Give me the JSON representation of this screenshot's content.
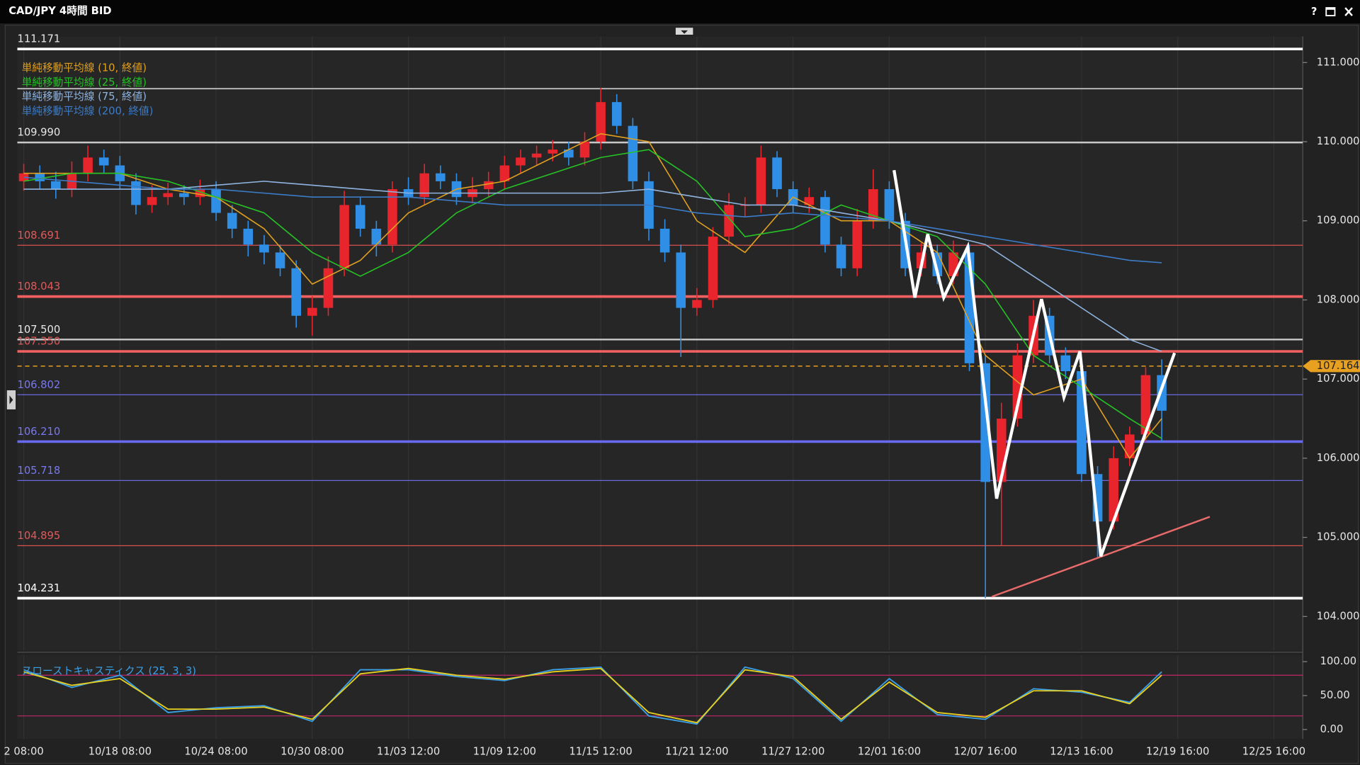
{
  "window": {
    "help_button": "?"
  },
  "chart_data": {
    "type": "candlestick",
    "title": "CAD/JPY 4時間 BID",
    "xlim": [
      -0.4,
      79.8
    ],
    "xticks": [
      {
        "value": 0,
        "label": "2 08:00"
      },
      {
        "value": 6,
        "label": "10/18 08:00"
      },
      {
        "value": 12,
        "label": "10/24 08:00"
      },
      {
        "value": 18,
        "label": "10/30 08:00"
      },
      {
        "value": 24,
        "label": "11/03 12:00"
      },
      {
        "value": 30,
        "label": "11/09 12:00"
      },
      {
        "value": 36,
        "label": "11/15 12:00"
      },
      {
        "value": 42,
        "label": "11/21 12:00"
      },
      {
        "value": 48,
        "label": "11/27 12:00"
      },
      {
        "value": 54,
        "label": "12/01 16:00"
      },
      {
        "value": 60,
        "label": "12/07 16:00"
      },
      {
        "value": 66,
        "label": "12/13 16:00"
      },
      {
        "value": 72,
        "label": "12/19 16:00"
      },
      {
        "value": 78,
        "label": "12/25 16:00"
      }
    ],
    "ylim": [
      103.57,
      111.33
    ],
    "yticks": [
      {
        "value": 104,
        "label": "104.000"
      },
      {
        "value": 105,
        "label": "105.000"
      },
      {
        "value": 106,
        "label": "106.000"
      },
      {
        "value": 107,
        "label": "107.000"
      },
      {
        "value": 108,
        "label": "108.000"
      },
      {
        "value": 109,
        "label": "109.000"
      },
      {
        "value": 110,
        "label": "110.000"
      },
      {
        "value": 111,
        "label": "111.000"
      }
    ],
    "up_color": "#e8242c",
    "down_color": "#2f8fe6",
    "open": [
      109.5,
      109.6,
      109.5,
      109.4,
      109.6,
      109.8,
      109.7,
      109.5,
      109.2,
      109.3,
      109.35,
      109.3,
      109.4,
      109.1,
      108.9,
      108.7,
      108.6,
      108.4,
      107.8,
      107.9,
      108.4,
      109.2,
      108.9,
      108.7,
      109.4,
      109.3,
      109.6,
      109.5,
      109.3,
      109.4,
      109.5,
      109.7,
      109.8,
      109.85,
      109.9,
      109.8,
      110.0,
      110.5,
      110.2,
      109.5,
      108.9,
      108.6,
      107.9,
      108.0,
      108.8,
      109.2,
      109.2,
      109.8,
      109.4,
      109.2,
      109.3,
      108.7,
      108.4,
      109.0,
      109.4,
      109.0,
      108.4,
      108.6,
      108.3,
      108.6,
      107.2,
      105.7,
      106.5,
      107.3,
      107.8,
      107.3,
      107.1,
      105.8,
      105.2,
      106.0,
      106.3,
      107.05
    ],
    "high": [
      109.72,
      109.7,
      109.62,
      109.75,
      109.95,
      109.9,
      109.82,
      109.6,
      109.45,
      109.48,
      109.45,
      109.52,
      109.5,
      109.2,
      109.0,
      108.82,
      108.7,
      108.5,
      108.05,
      108.55,
      109.38,
      109.3,
      109.0,
      109.5,
      109.55,
      109.72,
      109.7,
      109.6,
      109.55,
      109.62,
      109.82,
      109.9,
      109.95,
      110.02,
      110.0,
      110.12,
      110.68,
      110.6,
      110.3,
      109.62,
      109.02,
      108.7,
      108.15,
      108.92,
      109.35,
      109.3,
      109.95,
      109.88,
      109.5,
      109.42,
      109.38,
      108.8,
      109.15,
      109.65,
      109.5,
      109.1,
      108.72,
      108.7,
      108.75,
      108.7,
      107.3,
      106.7,
      107.45,
      108.0,
      107.9,
      107.4,
      107.2,
      105.9,
      106.15,
      106.4,
      107.15,
      107.25
    ],
    "low": [
      109.38,
      109.4,
      109.28,
      109.3,
      109.5,
      109.6,
      109.4,
      109.08,
      109.1,
      109.2,
      109.2,
      109.2,
      109.0,
      108.78,
      108.55,
      108.45,
      108.3,
      107.65,
      107.55,
      107.8,
      108.3,
      108.8,
      108.55,
      108.6,
      109.2,
      109.2,
      109.4,
      109.2,
      109.22,
      109.3,
      109.4,
      109.6,
      109.7,
      109.75,
      109.7,
      109.7,
      109.9,
      110.1,
      109.4,
      108.75,
      108.48,
      107.28,
      107.8,
      107.9,
      108.7,
      109.05,
      109.1,
      109.3,
      109.1,
      109.1,
      108.6,
      108.3,
      108.3,
      108.9,
      108.9,
      108.3,
      108.3,
      108.2,
      108.2,
      107.1,
      104.23,
      104.9,
      106.4,
      107.2,
      107.2,
      107.0,
      105.7,
      104.75,
      105.1,
      105.9,
      106.2,
      106.2
    ],
    "close": [
      109.6,
      109.5,
      109.4,
      109.6,
      109.8,
      109.7,
      109.5,
      109.2,
      109.3,
      109.35,
      109.3,
      109.4,
      109.1,
      108.9,
      108.7,
      108.6,
      108.4,
      107.8,
      107.9,
      108.4,
      109.2,
      108.9,
      108.7,
      109.4,
      109.3,
      109.6,
      109.5,
      109.3,
      109.4,
      109.5,
      109.7,
      109.8,
      109.85,
      109.9,
      109.8,
      110.0,
      110.5,
      110.2,
      109.5,
      108.9,
      108.6,
      107.9,
      108.0,
      108.8,
      109.2,
      109.2,
      109.8,
      109.4,
      109.2,
      109.3,
      108.7,
      108.4,
      109.0,
      109.4,
      109.0,
      108.4,
      108.6,
      108.3,
      108.6,
      107.2,
      105.7,
      106.5,
      107.3,
      107.8,
      107.3,
      107.1,
      105.8,
      105.2,
      106.0,
      106.3,
      107.05,
      106.6
    ],
    "moving_averages": {
      "x": [
        0,
        3,
        6,
        9,
        12,
        15,
        18,
        21,
        24,
        27,
        30,
        33,
        36,
        39,
        42,
        45,
        48,
        51,
        54,
        57,
        60,
        63,
        66,
        69,
        71
      ],
      "series": [
        {
          "name": "単純移動平均線 (10, 終値)",
          "color": "#e0a020",
          "values": [
            109.6,
            109.6,
            109.6,
            109.4,
            109.3,
            108.9,
            108.2,
            108.5,
            109.1,
            109.4,
            109.5,
            109.8,
            110.1,
            110.0,
            109.0,
            108.6,
            109.3,
            109.0,
            109.0,
            108.6,
            107.3,
            106.8,
            107.0,
            106.0,
            106.5
          ]
        },
        {
          "name": "単純移動平均線 (25, 終値)",
          "color": "#26c226",
          "values": [
            109.5,
            109.6,
            109.6,
            109.5,
            109.3,
            109.1,
            108.6,
            108.3,
            108.6,
            109.1,
            109.4,
            109.6,
            109.8,
            109.9,
            109.5,
            108.8,
            108.9,
            109.2,
            109.0,
            108.8,
            108.2,
            107.3,
            106.9,
            106.5,
            106.25
          ]
        },
        {
          "name": "単純移動平均線 (75, 終値)",
          "color": "#8fb4e0",
          "values": [
            109.4,
            109.4,
            109.4,
            109.4,
            109.45,
            109.5,
            109.45,
            109.4,
            109.35,
            109.35,
            109.35,
            109.35,
            109.35,
            109.4,
            109.3,
            109.2,
            109.2,
            109.1,
            109.0,
            108.85,
            108.7,
            108.3,
            107.9,
            107.5,
            107.35
          ]
        },
        {
          "name": "単純移動平均線 (200, 終値)",
          "color": "#3c7cc8",
          "values": [
            109.55,
            109.5,
            109.45,
            109.4,
            109.4,
            109.35,
            109.3,
            109.3,
            109.3,
            109.25,
            109.2,
            109.2,
            109.2,
            109.2,
            109.1,
            109.05,
            109.1,
            109.05,
            109.0,
            108.9,
            108.8,
            108.7,
            108.6,
            108.5,
            108.47
          ]
        }
      ]
    },
    "levels": [
      {
        "value": 111.171,
        "label": "111.171",
        "color": "#ffffff",
        "width": 3,
        "label_color": "#e8e8e8"
      },
      {
        "value": 110.67,
        "color": "#bdbdbd",
        "width": 1.5
      },
      {
        "value": 109.99,
        "label": "109.990",
        "color": "#c8c8c8",
        "width": 2,
        "label_color": "#e8e8e8"
      },
      {
        "value": 108.691,
        "label": "108.691",
        "color": "#d85050",
        "width": 1,
        "label_color": "#e05a5a"
      },
      {
        "value": 108.043,
        "label": "108.043",
        "color": "#f06060",
        "width": 3,
        "label_color": "#e05a5a"
      },
      {
        "value": 107.5,
        "label": "107.500",
        "color": "#c8c8c8",
        "width": 2,
        "label_color": "#e8e8e8"
      },
      {
        "value": 107.35,
        "label": "107.350",
        "color": "#f06060",
        "width": 3,
        "label_color": "#e05a5a"
      },
      {
        "value": 106.802,
        "label": "106.802",
        "color": "#6a6ae0",
        "width": 1,
        "label_color": "#7878f0"
      },
      {
        "value": 106.21,
        "label": "106.210",
        "color": "#6a6af0",
        "width": 3,
        "label_color": "#7878f0"
      },
      {
        "value": 105.718,
        "label": "105.718",
        "color": "#6a6ae0",
        "width": 1,
        "label_color": "#7878f0"
      },
      {
        "value": 104.895,
        "label": "104.895",
        "color": "#d85050",
        "width": 1,
        "label_color": "#e05a5a"
      },
      {
        "value": 104.231,
        "label": "104.231",
        "color": "#ffffff",
        "width": 3,
        "label_color": "#ffffff"
      }
    ],
    "current_price": 107.164,
    "current_price_color": "#e8a020",
    "pattern_line": {
      "color": "#ffffff",
      "x": [
        54.3,
        55.6,
        56.4,
        57.4,
        58.9,
        60.7,
        63.5,
        64.9,
        65.9,
        67.2,
        71.8
      ],
      "y": [
        109.64,
        108.03,
        108.83,
        108.03,
        108.67,
        105.49,
        108.01,
        106.77,
        107.35,
        104.76,
        107.33
      ]
    },
    "trend_line": {
      "color": "#e86a6a",
      "x": [
        60.4,
        74.0
      ],
      "y": [
        104.25,
        105.26
      ]
    },
    "stochastic": {
      "name": "スローストキャスティクス (25, 3, 3)",
      "name_color": "#3aa0e8",
      "ylim": [
        -14,
        110
      ],
      "yticks": [
        {
          "value": 0,
          "label": "0.00"
        },
        {
          "value": 50,
          "label": "50.00"
        },
        {
          "value": 100,
          "label": "100.00"
        }
      ],
      "levels": [
        20,
        80
      ],
      "level_color": "#c02866",
      "x": [
        0,
        3,
        6,
        9,
        12,
        15,
        18,
        21,
        24,
        27,
        30,
        33,
        36,
        39,
        42,
        45,
        48,
        51,
        54,
        57,
        60,
        63,
        66,
        69,
        71
      ],
      "lines": [
        {
          "color": "#3aa0e8",
          "values": [
            88,
            62,
            80,
            25,
            32,
            35,
            12,
            88,
            88,
            78,
            72,
            88,
            92,
            20,
            8,
            92,
            75,
            12,
            75,
            22,
            15,
            60,
            55,
            40,
            85
          ]
        },
        {
          "color": "#e8d020",
          "values": [
            85,
            65,
            75,
            30,
            30,
            33,
            15,
            82,
            90,
            80,
            74,
            85,
            90,
            25,
            10,
            88,
            78,
            15,
            70,
            25,
            18,
            57,
            57,
            38,
            80
          ]
        }
      ]
    }
  }
}
